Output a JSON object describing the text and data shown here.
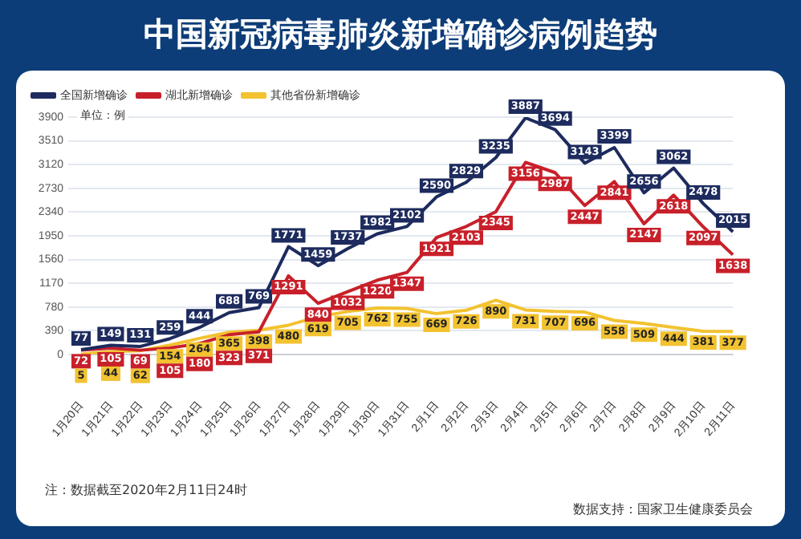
{
  "chart_data": {
    "type": "line",
    "title": "中国新冠病毒肺炎新增确诊病例趋势",
    "categories": [
      "1月20日",
      "1月21日",
      "1月22日",
      "1月23日",
      "1月24日",
      "1月25日",
      "1月26日",
      "1月27日",
      "1月28日",
      "1月29日",
      "1月30日",
      "1月31日",
      "2月1日",
      "2月2日",
      "2月3日",
      "2月4日",
      "2月5日",
      "2月6日",
      "2月7日",
      "2月8日",
      "2月9日",
      "2月10日",
      "2月11日"
    ],
    "series": [
      {
        "name": "全国新增确诊",
        "color": "#1d2b5e",
        "values": [
          77,
          149,
          131,
          259,
          444,
          688,
          769,
          1771,
          1459,
          1737,
          1982,
          2102,
          2590,
          2829,
          3235,
          3887,
          3694,
          3143,
          3399,
          2656,
          3062,
          2478,
          2015
        ]
      },
      {
        "name": "湖北新增确诊",
        "color": "#c8202a",
        "values": [
          72,
          105,
          69,
          105,
          180,
          323,
          371,
          1291,
          840,
          1032,
          1220,
          1347,
          1921,
          2103,
          2345,
          3156,
          2987,
          2447,
          2841,
          2147,
          2618,
          2097,
          1638
        ]
      },
      {
        "name": "其他省份新增确诊",
        "color": "#f2c230",
        "values": [
          5,
          44,
          62,
          154,
          264,
          365,
          398,
          480,
          619,
          705,
          762,
          755,
          669,
          726,
          890,
          731,
          707,
          696,
          558,
          509,
          444,
          381,
          377
        ]
      }
    ],
    "ylim": [
      0,
      3900
    ],
    "yticks": [
      0,
      390,
      780,
      1170,
      1560,
      1950,
      2340,
      2730,
      3120,
      3510,
      3900
    ],
    "grid": "y",
    "legend": "top left",
    "marker": "none",
    "line_style": "solid",
    "data_labels": true,
    "annotations": [
      "单位：例",
      "注：数据截至2020年2月11日24时",
      "数据支持：国家卫生健康委员会"
    ]
  }
}
